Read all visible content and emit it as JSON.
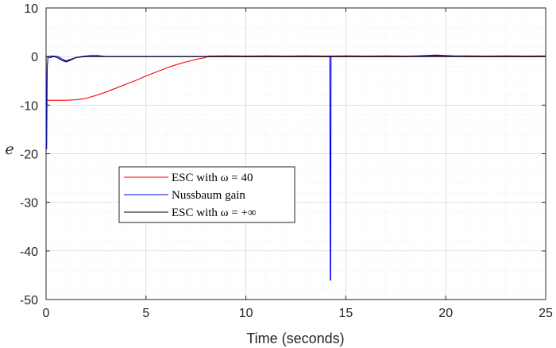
{
  "chart_data": {
    "type": "line",
    "title": "",
    "xlabel": "Time (seconds)",
    "ylabel": "e",
    "xlim": [
      0,
      25
    ],
    "ylim": [
      -50,
      10
    ],
    "xticks": [
      0,
      5,
      10,
      15,
      20,
      25
    ],
    "yticks": [
      -50,
      -40,
      -30,
      -20,
      -10,
      0,
      10
    ],
    "grid": true,
    "minor_grid": true,
    "legend_position": "center-left",
    "series": [
      {
        "name": "ESC with ω = 40",
        "color": "#ff0000",
        "x": [
          0,
          0.02,
          0.05,
          0.3,
          1.0,
          1.5,
          2.0,
          2.5,
          3.0,
          3.5,
          4.0,
          4.5,
          5.0,
          5.5,
          6.0,
          6.5,
          7.0,
          7.5,
          8.0,
          8.1,
          9,
          10,
          11,
          12,
          13,
          14,
          15,
          16,
          17,
          18,
          19,
          20,
          21,
          22,
          23,
          24,
          25
        ],
        "y": [
          0,
          -9.0,
          -9.0,
          -9.0,
          -9.0,
          -8.9,
          -8.6,
          -8.0,
          -7.3,
          -6.5,
          -5.7,
          -4.9,
          -4.0,
          -3.2,
          -2.4,
          -1.7,
          -1.1,
          -0.6,
          -0.2,
          0.1,
          0.15,
          0.1,
          0.15,
          0.1,
          0.15,
          0.1,
          0.15,
          0.1,
          0.15,
          0.1,
          0.15,
          0.1,
          0.15,
          0.1,
          0.15,
          0.1,
          0.15
        ]
      },
      {
        "name": "Nussbaum gain",
        "color": "#0000ff",
        "x": [
          0,
          0.03,
          0.06,
          0.1,
          0.3,
          0.6,
          0.8,
          1.0,
          1.2,
          1.5,
          1.8,
          2.2,
          2.6,
          3.0,
          4,
          6,
          8,
          10,
          12,
          14.2,
          14.22,
          14.24,
          14.26,
          15,
          16,
          17,
          18,
          18.5,
          19,
          19.5,
          20,
          20.5,
          21,
          22,
          23,
          24,
          25
        ],
        "y": [
          0,
          -19,
          -2.0,
          0,
          0.1,
          0,
          -0.5,
          -0.9,
          -0.6,
          -0.2,
          0,
          0.2,
          0.2,
          0,
          0,
          0,
          0,
          0,
          0,
          0,
          -46,
          -46,
          0,
          0,
          0,
          0,
          0,
          0.1,
          0.2,
          0.3,
          0.2,
          0.1,
          0,
          0,
          0,
          0,
          0
        ]
      },
      {
        "name": "ESC with ω = +∞",
        "color": "#000000",
        "x": [
          0,
          0.2,
          0.4,
          0.6,
          0.8,
          1.0,
          1.2,
          1.5,
          2,
          3,
          5,
          10,
          15,
          20,
          25
        ],
        "y": [
          0,
          -0.2,
          0,
          -0.3,
          -0.8,
          -1.1,
          -0.8,
          -0.2,
          0,
          0,
          0,
          0,
          0,
          0,
          0
        ]
      }
    ]
  }
}
